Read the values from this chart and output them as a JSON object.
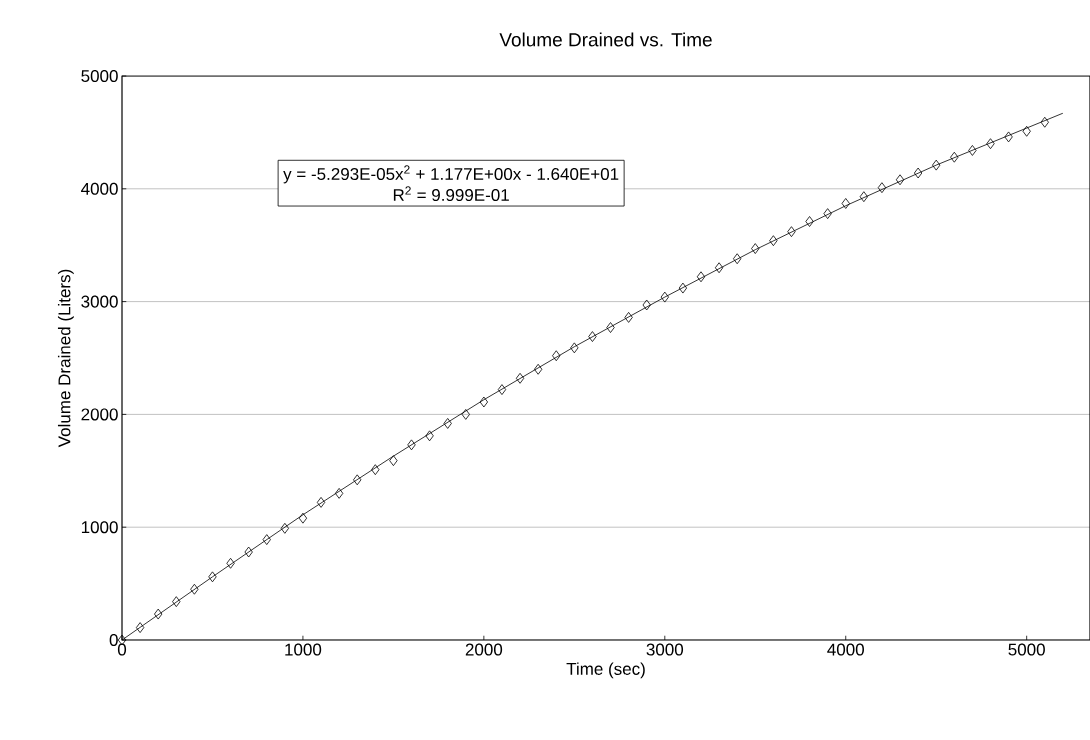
{
  "chart_data": {
    "type": "scatter",
    "title": "Volume Drained vs. Time",
    "xlabel": "Time (sec)",
    "ylabel": "Volume Drained (Liters)",
    "series": [
      {
        "marker": "diamond",
        "color": "#000000",
        "x": [
          0,
          100,
          200,
          300,
          400,
          500,
          600,
          700,
          800,
          900,
          1000,
          1100,
          1200,
          1300,
          1400,
          1500,
          1600,
          1700,
          1800,
          1900,
          2000,
          2100,
          2200,
          2300,
          2400,
          2500,
          2600,
          2700,
          2800,
          2900,
          3000,
          3100,
          3200,
          3300,
          3400,
          3500,
          3600,
          3700,
          3800,
          3900,
          4000,
          4100,
          4200,
          4300,
          4400,
          4500,
          4600,
          4700,
          4800,
          4900,
          5000,
          5100
        ],
        "values": [
          0,
          110,
          230,
          340,
          450,
          560,
          680,
          780,
          890,
          990,
          1080,
          1220,
          1300,
          1420,
          1510,
          1590,
          1730,
          1810,
          1920,
          2000,
          2110,
          2220,
          2320,
          2400,
          2520,
          2590,
          2690,
          2770,
          2860,
          2970,
          3040,
          3120,
          3220,
          3300,
          3380,
          3470,
          3540,
          3620,
          3710,
          3780,
          3870,
          3930,
          4010,
          4080,
          4140,
          4210,
          4280,
          4340,
          4400,
          4460,
          4510,
          4590
        ]
      },
      {
        "type": "line",
        "marker": "none",
        "color": "#000000",
        "x": [
          0,
          500,
          1000,
          1500,
          2000,
          2500,
          3000,
          3500,
          4000,
          4500,
          5200
        ],
        "values": [
          0,
          560,
          1110,
          1630,
          2130,
          2600,
          3040,
          3460,
          3850,
          4210,
          4670
        ]
      }
    ],
    "annotations": [
      "y = -5.293E-05x$^{2}$ + 1.177E+00x - 1.640E+01",
      "R$^{2}$ = 9.999E-01"
    ],
    "xlim": [
      0,
      5350
    ],
    "ylim": [
      0,
      5000
    ],
    "xticks": [
      0,
      1000,
      2000,
      3000,
      4000,
      5000
    ],
    "yticks": [
      0,
      1000,
      2000,
      3000,
      4000,
      5000
    ],
    "grid": "y",
    "line_style": "solid"
  }
}
